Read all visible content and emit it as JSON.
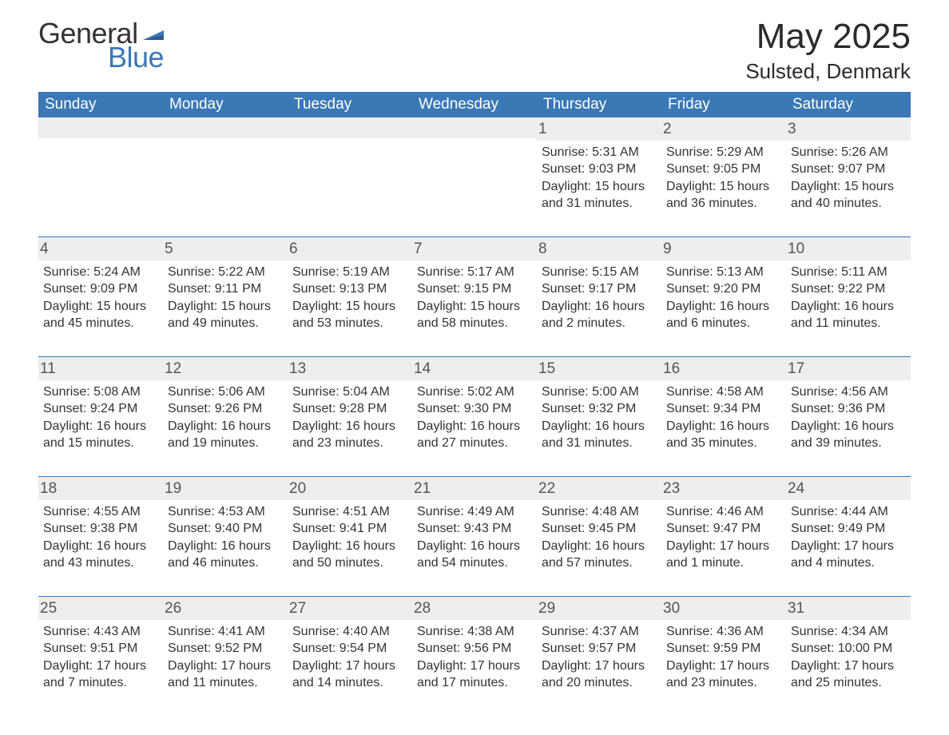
{
  "brand": {
    "general": "General",
    "blue": "Blue"
  },
  "title": "May 2025",
  "location": "Sulsted, Denmark",
  "colors": {
    "header_bg": "#3b78b6",
    "header_text": "#ffffff",
    "daynum_bg": "#eeeeee",
    "daynum_text": "#555555",
    "week_divider": "#3b78b6",
    "body_bg": "#ffffff",
    "text": "#333333",
    "brand_blue": "#3b78b6"
  },
  "layout": {
    "columns": 7,
    "rows": 5,
    "font_family": "Segoe UI",
    "header_fontsize": 19,
    "body_fontsize": 16,
    "title_fontsize": 44,
    "location_fontsize": 26
  },
  "weekdays": [
    "Sunday",
    "Monday",
    "Tuesday",
    "Wednesday",
    "Thursday",
    "Friday",
    "Saturday"
  ],
  "weeks": [
    [
      null,
      null,
      null,
      null,
      {
        "n": "1",
        "sunrise": "Sunrise: 5:31 AM",
        "sunset": "Sunset: 9:03 PM",
        "daylight": "Daylight: 15 hours and 31 minutes."
      },
      {
        "n": "2",
        "sunrise": "Sunrise: 5:29 AM",
        "sunset": "Sunset: 9:05 PM",
        "daylight": "Daylight: 15 hours and 36 minutes."
      },
      {
        "n": "3",
        "sunrise": "Sunrise: 5:26 AM",
        "sunset": "Sunset: 9:07 PM",
        "daylight": "Daylight: 15 hours and 40 minutes."
      }
    ],
    [
      {
        "n": "4",
        "sunrise": "Sunrise: 5:24 AM",
        "sunset": "Sunset: 9:09 PM",
        "daylight": "Daylight: 15 hours and 45 minutes."
      },
      {
        "n": "5",
        "sunrise": "Sunrise: 5:22 AM",
        "sunset": "Sunset: 9:11 PM",
        "daylight": "Daylight: 15 hours and 49 minutes."
      },
      {
        "n": "6",
        "sunrise": "Sunrise: 5:19 AM",
        "sunset": "Sunset: 9:13 PM",
        "daylight": "Daylight: 15 hours and 53 minutes."
      },
      {
        "n": "7",
        "sunrise": "Sunrise: 5:17 AM",
        "sunset": "Sunset: 9:15 PM",
        "daylight": "Daylight: 15 hours and 58 minutes."
      },
      {
        "n": "8",
        "sunrise": "Sunrise: 5:15 AM",
        "sunset": "Sunset: 9:17 PM",
        "daylight": "Daylight: 16 hours and 2 minutes."
      },
      {
        "n": "9",
        "sunrise": "Sunrise: 5:13 AM",
        "sunset": "Sunset: 9:20 PM",
        "daylight": "Daylight: 16 hours and 6 minutes."
      },
      {
        "n": "10",
        "sunrise": "Sunrise: 5:11 AM",
        "sunset": "Sunset: 9:22 PM",
        "daylight": "Daylight: 16 hours and 11 minutes."
      }
    ],
    [
      {
        "n": "11",
        "sunrise": "Sunrise: 5:08 AM",
        "sunset": "Sunset: 9:24 PM",
        "daylight": "Daylight: 16 hours and 15 minutes."
      },
      {
        "n": "12",
        "sunrise": "Sunrise: 5:06 AM",
        "sunset": "Sunset: 9:26 PM",
        "daylight": "Daylight: 16 hours and 19 minutes."
      },
      {
        "n": "13",
        "sunrise": "Sunrise: 5:04 AM",
        "sunset": "Sunset: 9:28 PM",
        "daylight": "Daylight: 16 hours and 23 minutes."
      },
      {
        "n": "14",
        "sunrise": "Sunrise: 5:02 AM",
        "sunset": "Sunset: 9:30 PM",
        "daylight": "Daylight: 16 hours and 27 minutes."
      },
      {
        "n": "15",
        "sunrise": "Sunrise: 5:00 AM",
        "sunset": "Sunset: 9:32 PM",
        "daylight": "Daylight: 16 hours and 31 minutes."
      },
      {
        "n": "16",
        "sunrise": "Sunrise: 4:58 AM",
        "sunset": "Sunset: 9:34 PM",
        "daylight": "Daylight: 16 hours and 35 minutes."
      },
      {
        "n": "17",
        "sunrise": "Sunrise: 4:56 AM",
        "sunset": "Sunset: 9:36 PM",
        "daylight": "Daylight: 16 hours and 39 minutes."
      }
    ],
    [
      {
        "n": "18",
        "sunrise": "Sunrise: 4:55 AM",
        "sunset": "Sunset: 9:38 PM",
        "daylight": "Daylight: 16 hours and 43 minutes."
      },
      {
        "n": "19",
        "sunrise": "Sunrise: 4:53 AM",
        "sunset": "Sunset: 9:40 PM",
        "daylight": "Daylight: 16 hours and 46 minutes."
      },
      {
        "n": "20",
        "sunrise": "Sunrise: 4:51 AM",
        "sunset": "Sunset: 9:41 PM",
        "daylight": "Daylight: 16 hours and 50 minutes."
      },
      {
        "n": "21",
        "sunrise": "Sunrise: 4:49 AM",
        "sunset": "Sunset: 9:43 PM",
        "daylight": "Daylight: 16 hours and 54 minutes."
      },
      {
        "n": "22",
        "sunrise": "Sunrise: 4:48 AM",
        "sunset": "Sunset: 9:45 PM",
        "daylight": "Daylight: 16 hours and 57 minutes."
      },
      {
        "n": "23",
        "sunrise": "Sunrise: 4:46 AM",
        "sunset": "Sunset: 9:47 PM",
        "daylight": "Daylight: 17 hours and 1 minute."
      },
      {
        "n": "24",
        "sunrise": "Sunrise: 4:44 AM",
        "sunset": "Sunset: 9:49 PM",
        "daylight": "Daylight: 17 hours and 4 minutes."
      }
    ],
    [
      {
        "n": "25",
        "sunrise": "Sunrise: 4:43 AM",
        "sunset": "Sunset: 9:51 PM",
        "daylight": "Daylight: 17 hours and 7 minutes."
      },
      {
        "n": "26",
        "sunrise": "Sunrise: 4:41 AM",
        "sunset": "Sunset: 9:52 PM",
        "daylight": "Daylight: 17 hours and 11 minutes."
      },
      {
        "n": "27",
        "sunrise": "Sunrise: 4:40 AM",
        "sunset": "Sunset: 9:54 PM",
        "daylight": "Daylight: 17 hours and 14 minutes."
      },
      {
        "n": "28",
        "sunrise": "Sunrise: 4:38 AM",
        "sunset": "Sunset: 9:56 PM",
        "daylight": "Daylight: 17 hours and 17 minutes."
      },
      {
        "n": "29",
        "sunrise": "Sunrise: 4:37 AM",
        "sunset": "Sunset: 9:57 PM",
        "daylight": "Daylight: 17 hours and 20 minutes."
      },
      {
        "n": "30",
        "sunrise": "Sunrise: 4:36 AM",
        "sunset": "Sunset: 9:59 PM",
        "daylight": "Daylight: 17 hours and 23 minutes."
      },
      {
        "n": "31",
        "sunrise": "Sunrise: 4:34 AM",
        "sunset": "Sunset: 10:00 PM",
        "daylight": "Daylight: 17 hours and 25 minutes."
      }
    ]
  ]
}
